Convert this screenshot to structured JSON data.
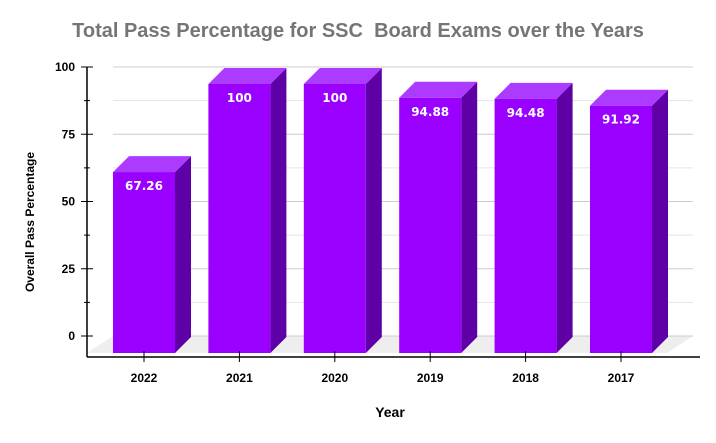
{
  "chart_data": {
    "type": "bar",
    "title": "Total Pass Percentage for SSC  Board Exams over the Years",
    "xlabel": "Year",
    "ylabel": "Overall Pass Percentage",
    "categories": [
      "2022",
      "2021",
      "2020",
      "2019",
      "2018",
      "2017"
    ],
    "values": [
      67.26,
      100,
      100,
      94.88,
      94.48,
      91.92
    ],
    "data_labels": [
      "67.26",
      "100",
      "100",
      "94.88",
      "94.48",
      "91.92"
    ],
    "ylim": [
      0,
      100
    ],
    "yticks": [
      0,
      25,
      50,
      75,
      100
    ],
    "grid": true,
    "legend": null,
    "style": "3d-column",
    "colors": {
      "front": "#9900ff",
      "top": "#ad3bff",
      "side": "#5f00a6",
      "floor": "#eeeeee",
      "grid": "#dddddd",
      "title": "#757575"
    }
  }
}
